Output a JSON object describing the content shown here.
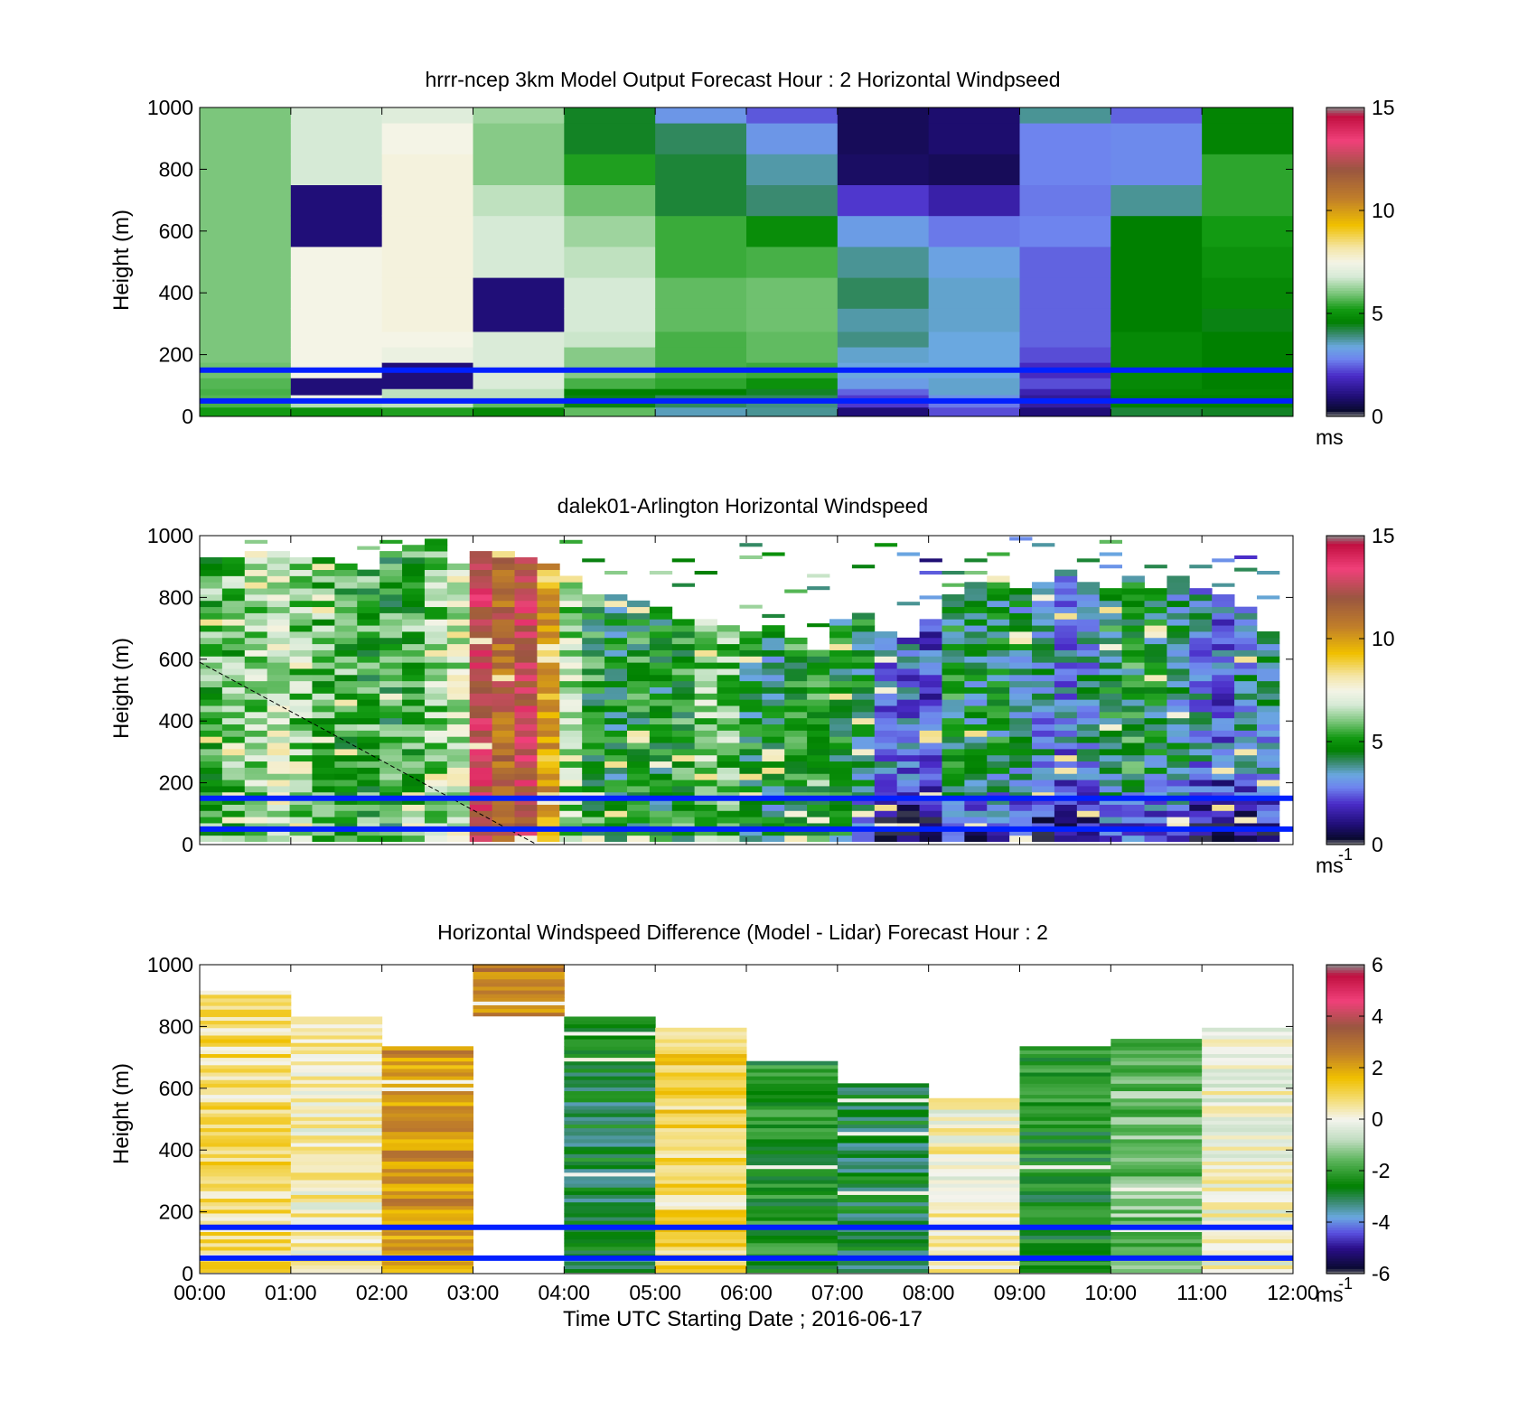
{
  "chart_data": [
    {
      "type": "heatmap",
      "title": "hrrr-ncep 3km Model Output   Forecast Hour : 2 Horizontal Windpseed",
      "ylabel": "Height (m)",
      "xlabel": "",
      "ylim": [
        0,
        1000
      ],
      "xlim": [
        0,
        12
      ],
      "yticks": [
        "0",
        "200",
        "400",
        "600",
        "800",
        "1000"
      ],
      "xtick_labels_shown": false,
      "x_columns": 12,
      "heights_m": [
        20,
        40,
        60,
        80,
        100,
        150,
        200,
        250,
        300,
        400,
        500,
        600,
        700,
        800,
        900,
        1000
      ],
      "values": [
        [
          5.2,
          5.6,
          5.7,
          5.6,
          5.7,
          5.9,
          6.0,
          6.0,
          6.0,
          6.0,
          6.0,
          6.0,
          6.0,
          6.0,
          6.0,
          6.0
        ],
        [
          5.0,
          6.5,
          7.4,
          1.0,
          1.0,
          7.5,
          7.5,
          7.5,
          7.5,
          7.5,
          7.5,
          1.0,
          1.0,
          6.8,
          6.8,
          6.8
        ],
        [
          5.3,
          6.6,
          6.6,
          6.6,
          1.0,
          1.0,
          7.3,
          7.5,
          7.6,
          7.6,
          7.6,
          7.6,
          7.6,
          7.6,
          7.5,
          7.0
        ],
        [
          4.8,
          5.8,
          6.6,
          6.6,
          6.9,
          6.9,
          6.9,
          6.9,
          1.0,
          1.0,
          6.8,
          6.8,
          6.6,
          6.1,
          6.1,
          6.3
        ],
        [
          5.8,
          4.5,
          4.5,
          4.6,
          5.6,
          6.1,
          6.1,
          6.7,
          6.8,
          6.8,
          6.6,
          6.3,
          5.9,
          5.3,
          4.4,
          4.4
        ],
        [
          3.6,
          4.1,
          4.1,
          4.6,
          5.4,
          5.6,
          5.6,
          5.6,
          5.8,
          5.8,
          5.5,
          5.5,
          4.3,
          4.3,
          4.1,
          3.1
        ],
        [
          3.8,
          3.9,
          4.1,
          4.4,
          5.0,
          5.5,
          5.8,
          5.8,
          5.9,
          5.9,
          5.6,
          4.9,
          4.0,
          3.7,
          3.1,
          2.4
        ],
        [
          1.0,
          2.1,
          2.1,
          2.5,
          3.2,
          3.4,
          3.5,
          3.9,
          3.7,
          4.1,
          3.8,
          3.2,
          2.1,
          0.8,
          0.7,
          0.7
        ],
        [
          2.3,
          2.7,
          3.0,
          3.5,
          3.5,
          3.4,
          3.4,
          3.4,
          3.5,
          3.5,
          3.3,
          2.7,
          1.6,
          0.7,
          0.9,
          0.9
        ],
        [
          1.0,
          1.5,
          1.4,
          1.7,
          2.3,
          1.9,
          2.3,
          2.5,
          2.5,
          2.5,
          2.5,
          2.8,
          2.7,
          2.8,
          2.8,
          3.8
        ],
        [
          4.3,
          4.6,
          4.6,
          4.7,
          4.8,
          4.8,
          4.8,
          4.8,
          4.6,
          4.6,
          4.6,
          4.6,
          3.8,
          2.9,
          2.9,
          2.5
        ],
        [
          4.4,
          4.6,
          4.6,
          4.7,
          4.6,
          4.6,
          4.6,
          4.6,
          4.5,
          4.8,
          5.0,
          5.2,
          5.4,
          5.4,
          4.7,
          4.7
        ]
      ],
      "colorbar": {
        "min": 0,
        "max": 15,
        "ticks": [
          "0",
          "5",
          "10",
          "15"
        ],
        "unit_label": "ms"
      },
      "reference_lines_m": [
        150,
        50
      ]
    },
    {
      "type": "heatmap",
      "title": "dalek01-Arlington  Horizontal Windspeed",
      "ylabel": "Height (m)",
      "xlabel": "",
      "ylim": [
        0,
        1000
      ],
      "xlim": [
        0,
        12
      ],
      "yticks": [
        "0",
        "200",
        "400",
        "600",
        "800",
        "1000"
      ],
      "xtick_labels_shown": false,
      "x_columns": 48,
      "top_of_data_m": [
        930,
        920,
        940,
        950,
        930,
        920,
        900,
        880,
        940,
        960,
        980,
        900,
        950,
        950,
        930,
        900,
        860,
        800,
        800,
        780,
        760,
        720,
        720,
        700,
        690,
        700,
        660,
        630,
        720,
        740,
        690,
        660,
        720,
        800,
        840,
        860,
        830,
        850,
        880,
        840,
        820,
        860,
        820,
        860,
        820,
        800,
        770,
        680
      ],
      "column_mean_speed_ms": [
        5.6,
        5.8,
        6.4,
        7.0,
        6.0,
        5.8,
        5.5,
        5.4,
        5.2,
        5.6,
        6.2,
        6.8,
        12.8,
        11.4,
        12.6,
        9.6,
        6.4,
        5.0,
        4.4,
        4.8,
        4.6,
        5.2,
        6.2,
        6.0,
        4.6,
        4.2,
        5.0,
        5.4,
        4.6,
        4.4,
        3.0,
        2.8,
        2.4,
        4.6,
        4.2,
        4.4,
        4.0,
        3.4,
        3.0,
        3.4,
        4.6,
        4.8,
        4.4,
        4.0,
        3.2,
        2.6,
        3.4,
        3.6
      ],
      "dashed_line": {
        "x_start_h": 0,
        "y_start_m": 590,
        "x_end_h": 3.7,
        "y_end_m": 0
      },
      "colorbar": {
        "min": 0,
        "max": 15,
        "ticks": [
          "0",
          "5",
          "10",
          "15"
        ],
        "unit_label": "ms",
        "unit_superscript": "-1"
      },
      "reference_lines_m": [
        150,
        50
      ]
    },
    {
      "type": "heatmap",
      "title": "Horizontal Windspeed Difference (Model - Lidar) Forecast Hour : 2",
      "ylabel": "Height (m)",
      "xlabel": "Time UTC  Starting Date ; 2016-06-17",
      "ylim": [
        0,
        1000
      ],
      "xlim": [
        0,
        12
      ],
      "yticks": [
        "0",
        "200",
        "400",
        "600",
        "800",
        "1000"
      ],
      "xticks": [
        "00:00",
        "01:00",
        "02:00",
        "03:00",
        "04:00",
        "05:00",
        "06:00",
        "07:00",
        "08:00",
        "09:00",
        "10:00",
        "11:00",
        "12:00"
      ],
      "x_columns": 12,
      "column_top_m": [
        910,
        830,
        730,
        1000,
        830,
        790,
        690,
        610,
        570,
        730,
        760,
        790
      ],
      "column_mean_diff_ms": [
        0.8,
        0.3,
        2.2,
        2.5,
        -2.8,
        1.0,
        -2.4,
        -2.8,
        0.2,
        -2.4,
        -1.4,
        0.0
      ],
      "colorbar": {
        "min": -6,
        "max": 6,
        "ticks": [
          "-6",
          "-4",
          "-2",
          "0",
          "2",
          "4",
          "6"
        ],
        "unit_label": "ms",
        "unit_superscript": "-1"
      },
      "reference_lines_m": [
        150,
        50
      ]
    }
  ]
}
